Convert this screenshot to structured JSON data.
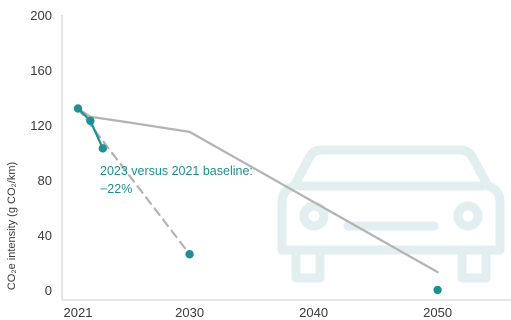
{
  "chart_data": {
    "type": "line",
    "ylabel": "CO₂e intensity (g CO₂/km)",
    "ylim": [
      0,
      200
    ],
    "yticks": [
      0,
      40,
      80,
      120,
      160,
      200
    ],
    "xlim": [
      2020,
      2055
    ],
    "xticks": [
      2021,
      2030,
      2040,
      2050
    ],
    "grid": false,
    "series": [
      {
        "style": "solid-gray",
        "x": [
          2021,
          2022,
          2025,
          2030,
          2050
        ],
        "y": [
          132,
          126,
          122,
          115,
          13
        ]
      },
      {
        "style": "dashed-gray",
        "x": [
          2021,
          2030
        ],
        "y": [
          132,
          26
        ]
      },
      {
        "style": "solid-teal-with-points",
        "x": [
          2021,
          2022,
          2023
        ],
        "y": [
          132,
          123,
          103
        ]
      },
      {
        "style": "points-teal",
        "x": [
          2030,
          2050
        ],
        "y": [
          26,
          0
        ]
      }
    ],
    "annotation": {
      "lines": [
        "2023 versus 2021 baseline:",
        "−22%"
      ]
    },
    "colors": {
      "teal": "#1f8f93",
      "gray": "#b3b3b3",
      "car": "#e3eef0",
      "axis": "#cfcfcf"
    },
    "background_icon": "car-icon"
  }
}
